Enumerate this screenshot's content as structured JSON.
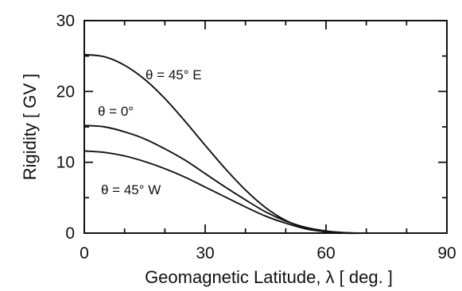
{
  "chart_data": {
    "type": "line",
    "title": "",
    "xlabel": "Geomagnetic Latitude, λ [ deg. ]",
    "ylabel": "Rigidity [ GV ]",
    "xlim": [
      0,
      90
    ],
    "ylim": [
      0,
      30
    ],
    "xticks": [
      0,
      30,
      60,
      90
    ],
    "yticks": [
      0,
      10,
      20,
      30
    ],
    "x_tick_labels": [
      "0",
      "30",
      "60",
      "90"
    ],
    "y_tick_labels": [
      "0",
      "10",
      "20",
      "30"
    ],
    "grid": false,
    "legend": "none",
    "series": [
      {
        "name": "θ = 45° E",
        "x": [
          0,
          5,
          10,
          15,
          20,
          25,
          30,
          35,
          40,
          45,
          50,
          55,
          60,
          65,
          70
        ],
        "y": [
          25.2,
          24.9,
          23.7,
          21.7,
          19.0,
          15.8,
          12.4,
          9.1,
          6.1,
          3.6,
          1.8,
          0.7,
          0.2,
          0.0,
          0.0
        ]
      },
      {
        "name": "θ = 0°",
        "x": [
          0,
          5,
          10,
          15,
          20,
          25,
          30,
          35,
          40,
          45,
          50,
          55,
          60,
          65,
          70
        ],
        "y": [
          15.2,
          15.0,
          14.3,
          13.3,
          11.9,
          10.3,
          8.4,
          6.5,
          4.7,
          3.0,
          1.7,
          0.8,
          0.3,
          0.05,
          0.0
        ]
      },
      {
        "name": "θ = 45° W",
        "x": [
          0,
          5,
          10,
          15,
          20,
          25,
          30,
          35,
          40,
          45,
          50,
          55,
          60,
          65,
          70
        ],
        "y": [
          11.6,
          11.4,
          10.9,
          10.1,
          9.1,
          7.9,
          6.5,
          5.1,
          3.7,
          2.4,
          1.4,
          0.6,
          0.2,
          0.05,
          0.0
        ]
      }
    ],
    "annotations": [
      {
        "series": "θ = 45° E",
        "text": "θ = 45° E"
      },
      {
        "series": "θ = 0°",
        "text": "θ = 0°"
      },
      {
        "series": "θ = 45° W",
        "text": "θ = 45° W"
      }
    ]
  }
}
